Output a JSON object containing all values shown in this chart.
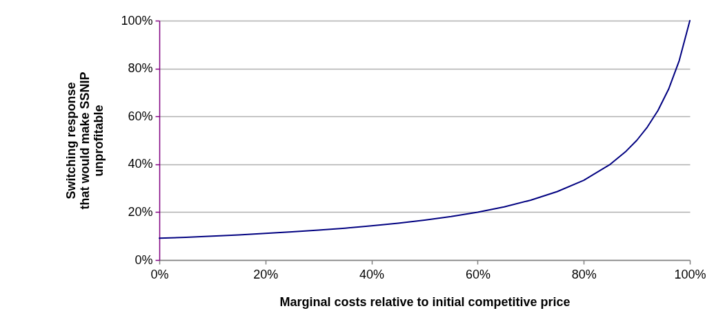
{
  "chart_data": {
    "type": "line",
    "xlabel": "Marginal costs relative to initial competitive price",
    "ylabel": "Switching response\nthat would make SSNIP\nunprofitable",
    "x": [
      0,
      5,
      10,
      15,
      20,
      25,
      30,
      35,
      40,
      45,
      50,
      55,
      60,
      65,
      70,
      75,
      80,
      85,
      88,
      90,
      92,
      94,
      96,
      98,
      100
    ],
    "series": [
      {
        "color": "#000080",
        "values": [
          9.1,
          9.5,
          10,
          10.5,
          11.1,
          11.8,
          12.5,
          13.3,
          14.3,
          15.4,
          16.7,
          18.2,
          20,
          22.2,
          25,
          28.6,
          33.3,
          40,
          45.5,
          50,
          55.6,
          62.5,
          71.4,
          83.3,
          100
        ]
      }
    ],
    "xlim": [
      0,
      100
    ],
    "xticks": [
      {
        "value": 0,
        "label": "0%"
      },
      {
        "value": 20,
        "label": "20%"
      },
      {
        "value": 40,
        "label": "40%"
      },
      {
        "value": 60,
        "label": "60%"
      },
      {
        "value": 80,
        "label": "80%"
      },
      {
        "value": 100,
        "label": "100%"
      }
    ],
    "ylim": [
      0,
      100
    ],
    "yticks": [
      {
        "value": 0,
        "label": "0%"
      },
      {
        "value": 20,
        "label": "20%"
      },
      {
        "value": 40,
        "label": "40%"
      },
      {
        "value": 60,
        "label": "60%"
      },
      {
        "value": 80,
        "label": "80%"
      },
      {
        "value": 100,
        "label": "100%"
      }
    ],
    "grid": "y",
    "marker": "none",
    "line_style": "solid"
  }
}
